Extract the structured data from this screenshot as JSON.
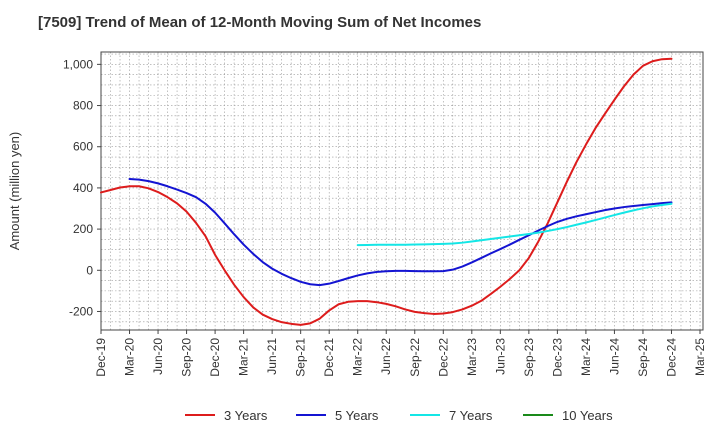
{
  "chart_data": {
    "type": "line",
    "title": "[7509]  Trend of Mean of 12-Month Moving Sum of Net Incomes",
    "ylabel": "Amount (million yen)",
    "xlabel": "",
    "ylim": [
      -290,
      1060
    ],
    "y_ticks": [
      -200,
      0,
      200,
      400,
      600,
      800,
      1000
    ],
    "y_tick_labels": [
      "-200",
      "0",
      "200",
      "400",
      "600",
      "800",
      "1,000"
    ],
    "x_tick_labels": [
      "Dec-19",
      "Mar-20",
      "Jun-20",
      "Sep-20",
      "Dec-20",
      "Mar-21",
      "Jun-21",
      "Sep-21",
      "Dec-21",
      "Mar-22",
      "Jun-22",
      "Sep-22",
      "Dec-22",
      "Mar-23",
      "Jun-23",
      "Sep-23",
      "Dec-23",
      "Mar-24",
      "Jun-24",
      "Sep-24",
      "Dec-24",
      "Mar-25"
    ],
    "grid": true,
    "legend_position": "bottom",
    "series": [
      {
        "name": "3 Years",
        "color": "#dd1c1c",
        "points": [
          [
            "2019-12",
            378
          ],
          [
            "2020-01",
            390
          ],
          [
            "2020-02",
            402
          ],
          [
            "2020-03",
            408
          ],
          [
            "2020-04",
            408
          ],
          [
            "2020-05",
            398
          ],
          [
            "2020-06",
            380
          ],
          [
            "2020-07",
            355
          ],
          [
            "2020-08",
            325
          ],
          [
            "2020-09",
            285
          ],
          [
            "2020-10",
            230
          ],
          [
            "2020-11",
            165
          ],
          [
            "2020-12",
            75
          ],
          [
            "2021-01",
            0
          ],
          [
            "2021-02",
            -70
          ],
          [
            "2021-03",
            -130
          ],
          [
            "2021-04",
            -180
          ],
          [
            "2021-05",
            -215
          ],
          [
            "2021-06",
            -237
          ],
          [
            "2021-07",
            -252
          ],
          [
            "2021-08",
            -260
          ],
          [
            "2021-09",
            -265
          ],
          [
            "2021-10",
            -258
          ],
          [
            "2021-11",
            -235
          ],
          [
            "2021-12",
            -195
          ],
          [
            "2022-01",
            -165
          ],
          [
            "2022-02",
            -153
          ],
          [
            "2022-03",
            -150
          ],
          [
            "2022-04",
            -150
          ],
          [
            "2022-05",
            -155
          ],
          [
            "2022-06",
            -163
          ],
          [
            "2022-07",
            -175
          ],
          [
            "2022-08",
            -190
          ],
          [
            "2022-09",
            -202
          ],
          [
            "2022-10",
            -208
          ],
          [
            "2022-11",
            -212
          ],
          [
            "2022-12",
            -210
          ],
          [
            "2023-01",
            -203
          ],
          [
            "2023-02",
            -190
          ],
          [
            "2023-03",
            -172
          ],
          [
            "2023-04",
            -148
          ],
          [
            "2023-05",
            -115
          ],
          [
            "2023-06",
            -80
          ],
          [
            "2023-07",
            -42
          ],
          [
            "2023-08",
            0
          ],
          [
            "2023-09",
            60
          ],
          [
            "2023-10",
            140
          ],
          [
            "2023-11",
            230
          ],
          [
            "2023-12",
            330
          ],
          [
            "2024-01",
            430
          ],
          [
            "2024-02",
            525
          ],
          [
            "2024-03",
            610
          ],
          [
            "2024-04",
            690
          ],
          [
            "2024-05",
            760
          ],
          [
            "2024-06",
            828
          ],
          [
            "2024-07",
            893
          ],
          [
            "2024-08",
            950
          ],
          [
            "2024-09",
            993
          ],
          [
            "2024-10",
            1015
          ],
          [
            "2024-11",
            1025
          ],
          [
            "2024-12",
            1027
          ]
        ]
      },
      {
        "name": "5 Years",
        "color": "#1414d2",
        "points": [
          [
            "2020-03",
            443
          ],
          [
            "2020-04",
            440
          ],
          [
            "2020-05",
            433
          ],
          [
            "2020-06",
            422
          ],
          [
            "2020-07",
            408
          ],
          [
            "2020-08",
            392
          ],
          [
            "2020-09",
            375
          ],
          [
            "2020-10",
            355
          ],
          [
            "2020-11",
            323
          ],
          [
            "2020-12",
            280
          ],
          [
            "2021-01",
            228
          ],
          [
            "2021-02",
            175
          ],
          [
            "2021-03",
            125
          ],
          [
            "2021-04",
            80
          ],
          [
            "2021-05",
            40
          ],
          [
            "2021-06",
            8
          ],
          [
            "2021-07",
            -17
          ],
          [
            "2021-08",
            -38
          ],
          [
            "2021-09",
            -56
          ],
          [
            "2021-10",
            -68
          ],
          [
            "2021-11",
            -72
          ],
          [
            "2021-12",
            -65
          ],
          [
            "2022-01",
            -52
          ],
          [
            "2022-02",
            -38
          ],
          [
            "2022-03",
            -25
          ],
          [
            "2022-04",
            -15
          ],
          [
            "2022-05",
            -8
          ],
          [
            "2022-06",
            -5
          ],
          [
            "2022-07",
            -3
          ],
          [
            "2022-08",
            -3
          ],
          [
            "2022-09",
            -4
          ],
          [
            "2022-10",
            -5
          ],
          [
            "2022-11",
            -5
          ],
          [
            "2022-12",
            -4
          ],
          [
            "2023-01",
            3
          ],
          [
            "2023-02",
            18
          ],
          [
            "2023-03",
            38
          ],
          [
            "2023-04",
            60
          ],
          [
            "2023-05",
            82
          ],
          [
            "2023-06",
            103
          ],
          [
            "2023-07",
            125
          ],
          [
            "2023-08",
            148
          ],
          [
            "2023-09",
            170
          ],
          [
            "2023-10",
            193
          ],
          [
            "2023-11",
            215
          ],
          [
            "2023-12",
            235
          ],
          [
            "2024-01",
            250
          ],
          [
            "2024-02",
            262
          ],
          [
            "2024-03",
            272
          ],
          [
            "2024-04",
            282
          ],
          [
            "2024-05",
            292
          ],
          [
            "2024-06",
            300
          ],
          [
            "2024-07",
            307
          ],
          [
            "2024-08",
            312
          ],
          [
            "2024-09",
            317
          ],
          [
            "2024-10",
            321
          ],
          [
            "2024-11",
            326
          ],
          [
            "2024-12",
            330
          ]
        ]
      },
      {
        "name": "7 Years",
        "color": "#14e6e6",
        "points": [
          [
            "2022-03",
            122
          ],
          [
            "2022-04",
            123
          ],
          [
            "2022-05",
            124
          ],
          [
            "2022-06",
            124
          ],
          [
            "2022-07",
            124
          ],
          [
            "2022-08",
            124
          ],
          [
            "2022-09",
            125
          ],
          [
            "2022-10",
            126
          ],
          [
            "2022-11",
            127
          ],
          [
            "2022-12",
            128
          ],
          [
            "2023-01",
            130
          ],
          [
            "2023-02",
            134
          ],
          [
            "2023-03",
            140
          ],
          [
            "2023-04",
            146
          ],
          [
            "2023-05",
            152
          ],
          [
            "2023-06",
            158
          ],
          [
            "2023-07",
            164
          ],
          [
            "2023-08",
            170
          ],
          [
            "2023-09",
            176
          ],
          [
            "2023-10",
            183
          ],
          [
            "2023-11",
            191
          ],
          [
            "2023-12",
            200
          ],
          [
            "2024-01",
            210
          ],
          [
            "2024-02",
            221
          ],
          [
            "2024-03",
            232
          ],
          [
            "2024-04",
            244
          ],
          [
            "2024-05",
            256
          ],
          [
            "2024-06",
            268
          ],
          [
            "2024-07",
            280
          ],
          [
            "2024-08",
            291
          ],
          [
            "2024-09",
            301
          ],
          [
            "2024-10",
            310
          ],
          [
            "2024-11",
            317
          ],
          [
            "2024-12",
            323
          ]
        ]
      },
      {
        "name": "10 Years",
        "color": "#1a8a1a",
        "points": []
      }
    ]
  }
}
